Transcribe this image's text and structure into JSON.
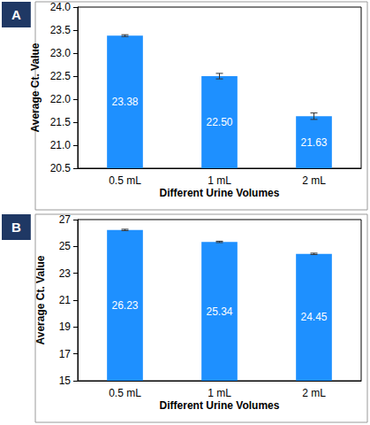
{
  "chart_data": [
    {
      "type": "bar",
      "title": "A",
      "x_label": "Different Urine Volumes",
      "y_label": "Average Ct. Value",
      "categories": [
        "0.5 mL",
        "1 mL",
        "2 mL"
      ],
      "values": [
        23.38,
        22.5,
        21.63
      ],
      "value_labels": [
        "23.38",
        "22.50",
        "21.63"
      ],
      "errors": [
        0.02,
        0.06,
        0.07
      ],
      "color": "#1e90ff",
      "ylim": [
        20.5,
        24.0
      ],
      "yticks": [
        20.5,
        {
          "value": 21,
          "label": "21.0"
        },
        21.5,
        {
          "value": 22,
          "label": "22.0"
        },
        22.5,
        {
          "value": 23,
          "label": "23.0"
        },
        23.5,
        {
          "value": 24,
          "label": "24.0"
        }
      ],
      "grid": false,
      "data_labels": true
    },
    {
      "type": "bar",
      "title": "B",
      "x_label": "Different Urine Volumes",
      "y_label": "Average Ct. Value",
      "categories": [
        "0.5 mL",
        "1 mL",
        "2 mL"
      ],
      "values": [
        26.23,
        25.34,
        24.45
      ],
      "value_labels": [
        "26.23",
        "25.34",
        "24.45"
      ],
      "errors": [
        0.05,
        0.05,
        0.05
      ],
      "color": "#1e90ff",
      "ylim": [
        15,
        27
      ],
      "yticks": [
        15,
        17,
        19,
        21,
        23,
        25,
        27
      ],
      "grid": false,
      "data_labels": true
    }
  ]
}
